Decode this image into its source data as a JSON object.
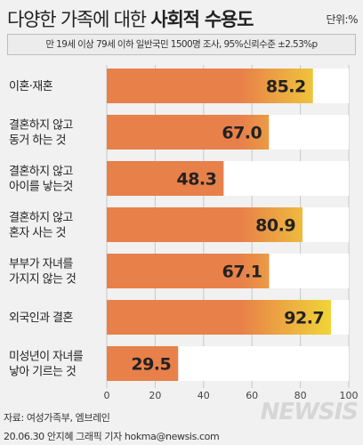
{
  "header": {
    "title_normal": "다양한 가족에 대한 ",
    "title_bold": "사회적 수용도",
    "unit": "단위:%"
  },
  "subtitle": "만 19세 이상 79세 이하 일반국민 1500명 조사, 95%신뢰수준 ±2.53%p",
  "chart_data": {
    "type": "bar",
    "orientation": "horizontal",
    "categories": [
      [
        "이혼·재혼"
      ],
      [
        "결혼하지 않고",
        "동거 하는 것"
      ],
      [
        "결혼하지 않고",
        "아이를 낳는것"
      ],
      [
        "결혼하지 않고",
        "혼자 사는 것"
      ],
      [
        "부부가 자녀를",
        "가지지 않는 것"
      ],
      [
        "외국인과 결혼"
      ],
      [
        "미성년이 자녀를",
        "낳아 기르는 것"
      ]
    ],
    "values": [
      85.2,
      67.0,
      48.3,
      80.9,
      67.1,
      92.7,
      29.5
    ],
    "value_labels": [
      "85.2",
      "67.0",
      "48.3",
      "80.9",
      "67.1",
      "92.7",
      "29.5"
    ],
    "xlim": [
      0,
      100
    ],
    "xticks": [
      "0",
      "20",
      "40",
      "60",
      "80",
      "100"
    ],
    "bar_colors": {
      "start": "#e8804a",
      "end": "#f2e534",
      "track": "#ffffff"
    }
  },
  "footer": {
    "source": "자료: 여성가족부, 엠브레인",
    "credit": "20.06.30 안지혜 그래픽 기자 hokma@newsis.com",
    "logo": "NEWSIS"
  }
}
